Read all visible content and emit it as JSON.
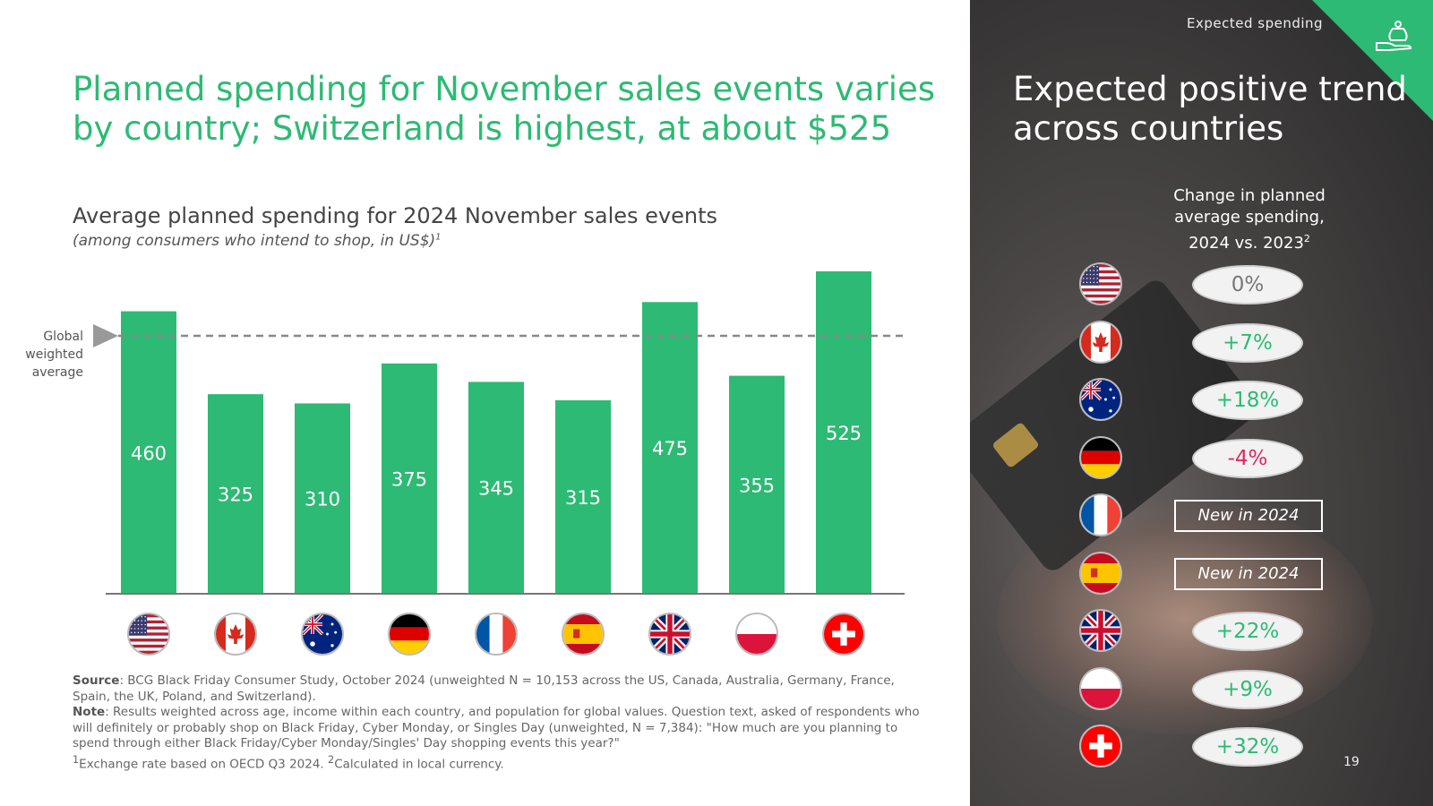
{
  "header": {
    "title": "Planned spending for November sales events varies by country; Switzerland is highest, at about $525"
  },
  "chart_data": {
    "type": "bar",
    "title": "Average planned spending for 2024 November sales events",
    "subtitle": "(among consumers who intend to shop, in US$)",
    "subtitle_note": "1",
    "categories": [
      "US",
      "Canada",
      "Australia",
      "Germany",
      "France",
      "Spain",
      "UK",
      "Poland",
      "Switzerland"
    ],
    "values": [
      460,
      325,
      310,
      375,
      345,
      315,
      475,
      355,
      525
    ],
    "value_labels": [
      "460",
      "325",
      "310",
      "375",
      "345",
      "315",
      "475",
      "355",
      "525"
    ],
    "ylim": [
      0,
      525
    ],
    "reference_line": {
      "label": "Global weighted average",
      "value": 420,
      "style": "dashed"
    },
    "grid": false,
    "legend": "none"
  },
  "annotations": {
    "global_label": "Global weighted average"
  },
  "footnote": {
    "source_label": "Source",
    "source_text": ": BCG Black Friday Consumer Study, October 2024 (unweighted N = 10,153 across the US, Canada, Australia, Germany, France, Spain, the UK, Poland, and Switzerland).",
    "note_label": "Note",
    "note_text": ": Results weighted across age, income within each country, and population for global values. Question text, asked of respondents who will definitely or probably shop on Black Friday, Cyber Monday, or Singles Day (unweighted, N = 7,384): \"How much are you planning to spend through either Black Friday/Cyber Monday/Singles' Day shopping events this year?\"",
    "fn1": "1",
    "fn1_text": "Exchange rate based on OECD Q3 2024.",
    "fn2": "2",
    "fn2_text": "Calculated in local currency."
  },
  "side_panel": {
    "section_tag": "Expected spending",
    "title": "Expected positive trend across countries",
    "change_header": "Change in planned average spending, 2024 vs. 2023",
    "change_header_note": "2",
    "changes": [
      {
        "country": "US",
        "value": "0%",
        "kind": "neutral"
      },
      {
        "country": "Canada",
        "value": "+7%",
        "kind": "pos"
      },
      {
        "country": "Australia",
        "value": "+18%",
        "kind": "pos"
      },
      {
        "country": "Germany",
        "value": "-4%",
        "kind": "neg"
      },
      {
        "country": "France",
        "value": "New in 2024",
        "kind": "new"
      },
      {
        "country": "Spain",
        "value": "New in 2024",
        "kind": "new"
      },
      {
        "country": "UK",
        "value": "+22%",
        "kind": "pos"
      },
      {
        "country": "Poland",
        "value": "+9%",
        "kind": "pos"
      },
      {
        "country": "Switzerland",
        "value": "+32%",
        "kind": "pos"
      }
    ]
  },
  "page_number": "19",
  "colors": {
    "accent": "#2dba74",
    "negative": "#e2275e",
    "text": "#444444"
  },
  "icons": {
    "corner": "money-bag-hand-icon"
  }
}
